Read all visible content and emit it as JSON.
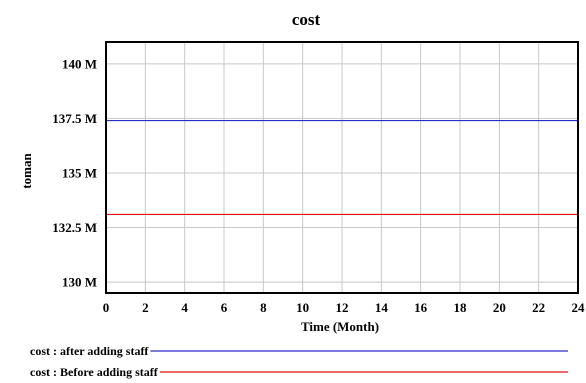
{
  "chart_data": {
    "type": "line",
    "title": "cost",
    "xlabel": "Time (Month)",
    "ylabel": "toman",
    "xlim": [
      0,
      24
    ],
    "ylim": [
      129500000,
      141000000
    ],
    "x_ticks": [
      0,
      2,
      4,
      6,
      8,
      10,
      12,
      14,
      16,
      18,
      20,
      22,
      24
    ],
    "y_ticks": [
      {
        "value": 130000000,
        "label": "130 M"
      },
      {
        "value": 132500000,
        "label": "132.5 M"
      },
      {
        "value": 135000000,
        "label": "135 M"
      },
      {
        "value": 137500000,
        "label": "137.5 M"
      },
      {
        "value": 140000000,
        "label": "140 M"
      }
    ],
    "grid": true,
    "legend_position": "bottom",
    "series": [
      {
        "name": "cost : after adding staff",
        "color": "#2b2bcc",
        "x": [
          0,
          24
        ],
        "y": [
          137400000,
          137400000
        ]
      },
      {
        "name": "cost : Before adding staff",
        "color": "#dd1111",
        "x": [
          0,
          24
        ],
        "y": [
          133100000,
          133100000
        ]
      }
    ]
  }
}
